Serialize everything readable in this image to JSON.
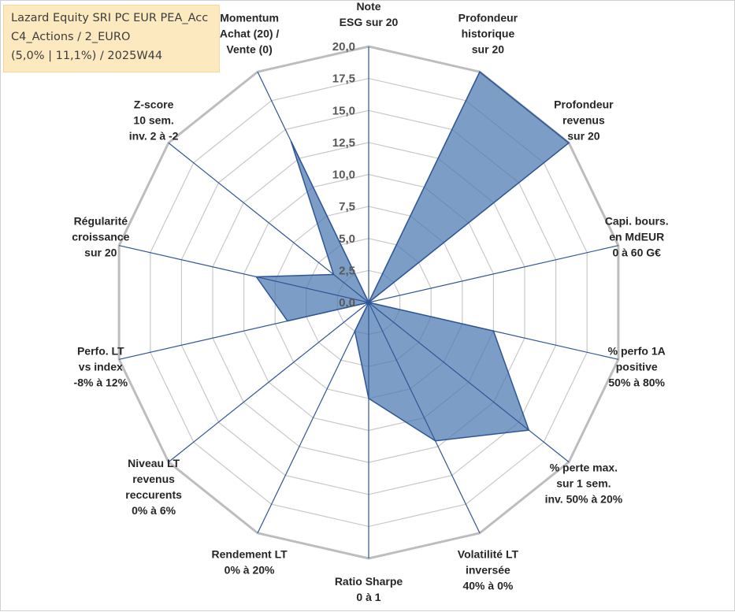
{
  "chart_data": {
    "type": "radar",
    "title_lines": [
      "Lazard Equity SRI PC EUR PEA_Acc",
      "C4_Actions / 2_EURO",
      "(5,0% | 11,1%) / 2025W44"
    ],
    "axes": [
      {
        "label_lines": [
          "Note",
          "ESG sur 20"
        ]
      },
      {
        "label_lines": [
          "Profondeur",
          "historique",
          "sur 20"
        ]
      },
      {
        "label_lines": [
          "Profondeur",
          "revenus",
          "sur 20"
        ]
      },
      {
        "label_lines": [
          "Capi. bours.",
          "en MdEUR",
          "0 à 60 G€"
        ]
      },
      {
        "label_lines": [
          "% perfo 1A",
          "positive",
          "50% à 80%"
        ]
      },
      {
        "label_lines": [
          "% perte max.",
          "sur 1 sem.",
          "inv. 50% à 20%"
        ]
      },
      {
        "label_lines": [
          "Volatilité LT",
          "inversée",
          "40% à 0%"
        ]
      },
      {
        "label_lines": [
          "Ratio Sharpe",
          "0 à 1"
        ]
      },
      {
        "label_lines": [
          "Rendement LT",
          "0% à 20%"
        ]
      },
      {
        "label_lines": [
          "Niveau LT",
          "revenus",
          "reccurents",
          "0% à 6%"
        ]
      },
      {
        "label_lines": [
          "Perfo. LT",
          "vs index",
          "-8% à 12%"
        ]
      },
      {
        "label_lines": [
          "Régularité",
          "croissance",
          "sur 20"
        ]
      },
      {
        "label_lines": [
          "Z-score",
          "10 sem.",
          "inv. 2 à -2"
        ]
      },
      {
        "label_lines": [
          "Momentum",
          "Achat (20) /",
          "Vente (0)"
        ]
      }
    ],
    "series": [
      {
        "values": [
          0,
          20,
          20,
          0,
          10,
          16,
          12,
          7.5,
          2.5,
          0,
          6.5,
          9,
          3.5,
          14
        ]
      }
    ],
    "ticks": [
      "0,0",
      "2,5",
      "5,0",
      "7,5",
      "10,0",
      "12,5",
      "15,0",
      "17,5",
      "20,0"
    ],
    "rmin": 0,
    "rmax": 20,
    "colors": {
      "fill": "#4a78b0",
      "spokes": "#2f5597",
      "grid": "#c8c8c8",
      "title_bg": "#fde9c0"
    }
  }
}
